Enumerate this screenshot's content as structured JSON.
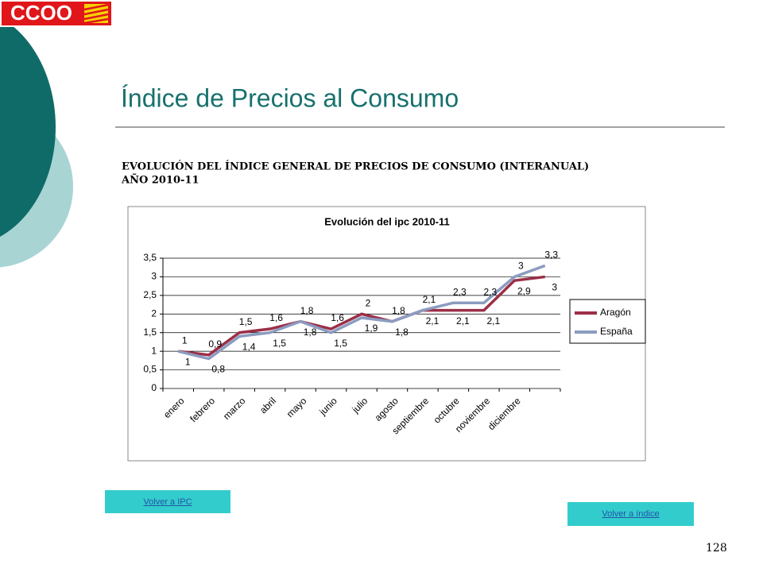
{
  "logo": "CCOO",
  "heading": "Índice de Precios al Consumo",
  "subtitle": [
    "EVOLUCIÓN DEL ÍNDICE GENERAL DE PRECIOS DE CONSUMO (INTERANUAL)",
    "AÑO 2010-11"
  ],
  "buttons": [
    "Volver a IPC",
    "Volver a índice"
  ],
  "page_number": "128",
  "chart_data": {
    "type": "line",
    "title": "Evolución del ipc 2010-11",
    "categories": [
      "enero",
      "febrero",
      "marzo",
      "abril",
      "mayo",
      "junio",
      "julio",
      "agosto",
      "septiembre",
      "octubre",
      "noviembre",
      "diciembre",
      null
    ],
    "series": [
      {
        "name": "Aragón",
        "color": "#9b2f48",
        "values": [
          1,
          0.9,
          1.5,
          1.6,
          1.8,
          1.6,
          2,
          1.8,
          2.1,
          2.1,
          2.1,
          2.9,
          3
        ],
        "value_labels": [
          "1",
          "0,9",
          "1,5",
          "1,6",
          "1,8",
          "1,6",
          "2",
          "1,8",
          "2,1",
          "2,1",
          "2,1",
          "2,9",
          "3"
        ]
      },
      {
        "name": "España",
        "color": "#8b9cc0",
        "values": [
          1,
          0.8,
          1.4,
          1.5,
          1.8,
          1.5,
          1.9,
          1.8,
          2.1,
          2.3,
          2.3,
          3,
          3.3
        ],
        "value_labels": [
          "1",
          "0,8",
          "1,4",
          "1,5",
          "1,8",
          "1,5",
          "1,9",
          "1,8",
          "2,1",
          "2,3",
          "2,3",
          "3",
          "3,3"
        ]
      }
    ],
    "ylim": [
      0,
      3.5
    ],
    "yticks": [
      0,
      {
        "value": 0.5,
        "label": "0,5"
      },
      1,
      {
        "value": 1.5,
        "label": "1,5"
      },
      2,
      {
        "value": 2.5,
        "label": "2,5"
      },
      3,
      {
        "value": 3.5,
        "label": "3,5"
      }
    ],
    "grid": true,
    "legend": "right"
  }
}
